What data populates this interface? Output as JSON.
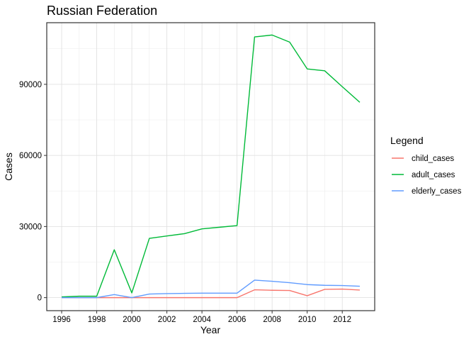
{
  "chart_data": {
    "type": "line",
    "title": "Russian Federation",
    "xlabel": "Year",
    "ylabel": "Cases",
    "x": [
      1996,
      1997,
      1998,
      1999,
      2000,
      2001,
      2002,
      2003,
      2004,
      2005,
      2006,
      2007,
      2008,
      2009,
      2010,
      2011,
      2012,
      2013
    ],
    "xticks": [
      1996,
      1998,
      2000,
      2002,
      2004,
      2006,
      2008,
      2010,
      2012
    ],
    "yticks": [
      0,
      30000,
      60000,
      90000
    ],
    "xlim": [
      1995.15,
      2013.85
    ],
    "ylim": [
      -5500,
      116000
    ],
    "grid": true,
    "legend": {
      "title": "Legend",
      "position": "right"
    },
    "series": [
      {
        "name": "child_cases",
        "color": "#F8766D",
        "values": [
          0,
          0,
          0,
          0,
          0,
          0,
          0,
          0,
          0,
          0,
          0,
          3300,
          3100,
          3000,
          800,
          3500,
          3600,
          3200
        ]
      },
      {
        "name": "adult_cases",
        "color": "#00BA38",
        "values": [
          300,
          600,
          600,
          20200,
          2000,
          25000,
          26000,
          27000,
          29000,
          29700,
          30400,
          110000,
          110800,
          107800,
          96500,
          95700,
          89000,
          82400
        ]
      },
      {
        "name": "elderly_cases",
        "color": "#619CFF",
        "values": [
          0,
          0,
          0,
          1300,
          0,
          1500,
          1700,
          1800,
          1900,
          1900,
          1900,
          7400,
          6900,
          6300,
          5500,
          5200,
          5100,
          4800
        ]
      }
    ]
  }
}
